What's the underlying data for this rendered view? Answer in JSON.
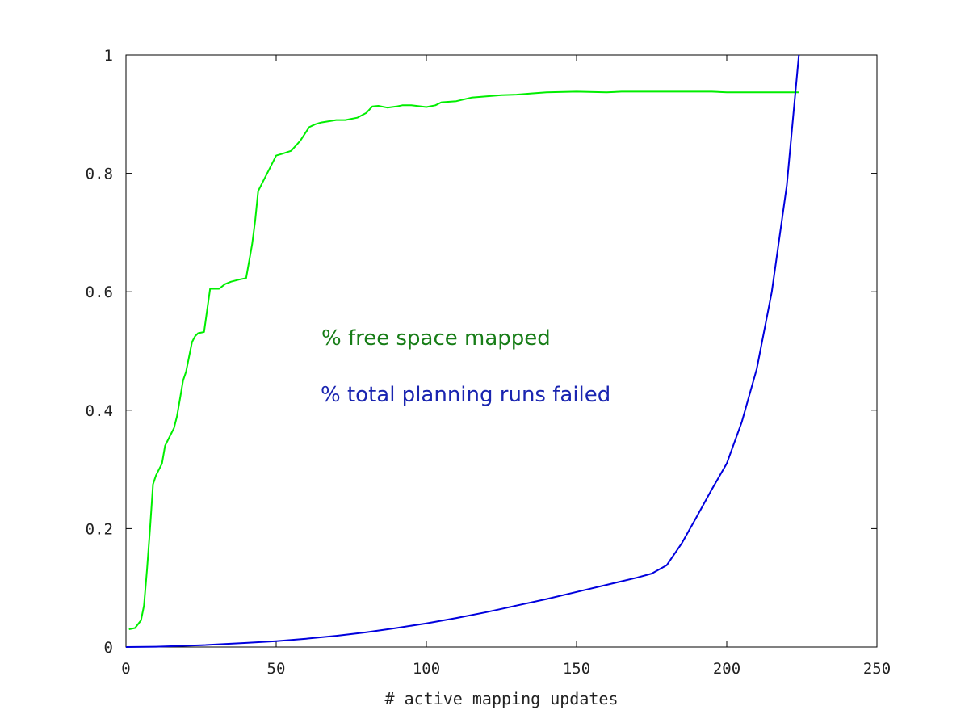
{
  "chart_data": {
    "type": "line",
    "title": "",
    "xlabel": "# active mapping updates",
    "ylabel": "",
    "xlim": [
      0,
      250
    ],
    "ylim": [
      0,
      1
    ],
    "grid": false,
    "xticks": [
      0,
      50,
      100,
      150,
      200,
      250
    ],
    "yticks": [
      0,
      0.2,
      0.4,
      0.6,
      0.8,
      1
    ],
    "xtick_labels": [
      "0",
      "50",
      "100",
      "150",
      "200",
      "250"
    ],
    "ytick_labels": [
      "0",
      "0.2",
      "0.4",
      "0.6",
      "0.8",
      "1"
    ],
    "series": [
      {
        "name": "% free space mapped",
        "color": "#00ee00",
        "label_color": "#177d17",
        "points": [
          [
            1,
            0.03
          ],
          [
            3,
            0.032
          ],
          [
            5,
            0.045
          ],
          [
            6,
            0.07
          ],
          [
            7,
            0.13
          ],
          [
            8,
            0.2
          ],
          [
            9,
            0.275
          ],
          [
            10,
            0.29
          ],
          [
            12,
            0.31
          ],
          [
            13,
            0.34
          ],
          [
            14,
            0.35
          ],
          [
            16,
            0.37
          ],
          [
            17,
            0.39
          ],
          [
            18,
            0.42
          ],
          [
            19,
            0.45
          ],
          [
            20,
            0.465
          ],
          [
            21,
            0.49
          ],
          [
            22,
            0.515
          ],
          [
            23,
            0.525
          ],
          [
            24,
            0.53
          ],
          [
            26,
            0.532
          ],
          [
            28,
            0.605
          ],
          [
            31,
            0.605
          ],
          [
            33,
            0.613
          ],
          [
            35,
            0.617
          ],
          [
            38,
            0.621
          ],
          [
            40,
            0.623
          ],
          [
            42,
            0.68
          ],
          [
            43,
            0.72
          ],
          [
            44,
            0.77
          ],
          [
            46,
            0.79
          ],
          [
            48,
            0.81
          ],
          [
            50,
            0.83
          ],
          [
            52,
            0.833
          ],
          [
            55,
            0.838
          ],
          [
            58,
            0.855
          ],
          [
            61,
            0.878
          ],
          [
            63,
            0.883
          ],
          [
            65,
            0.886
          ],
          [
            70,
            0.89
          ],
          [
            73,
            0.89
          ],
          [
            77,
            0.894
          ],
          [
            80,
            0.902
          ],
          [
            82,
            0.913
          ],
          [
            84,
            0.914
          ],
          [
            87,
            0.911
          ],
          [
            90,
            0.913
          ],
          [
            92,
            0.915
          ],
          [
            95,
            0.915
          ],
          [
            100,
            0.912
          ],
          [
            103,
            0.915
          ],
          [
            105,
            0.92
          ],
          [
            110,
            0.922
          ],
          [
            115,
            0.928
          ],
          [
            120,
            0.93
          ],
          [
            125,
            0.932
          ],
          [
            130,
            0.933
          ],
          [
            135,
            0.935
          ],
          [
            140,
            0.937
          ],
          [
            150,
            0.938
          ],
          [
            160,
            0.937
          ],
          [
            165,
            0.938
          ],
          [
            180,
            0.938
          ],
          [
            195,
            0.938
          ],
          [
            200,
            0.937
          ],
          [
            210,
            0.937
          ],
          [
            224,
            0.937
          ]
        ]
      },
      {
        "name": "% total planning runs failed",
        "color": "#0000dd",
        "label_color": "#1a25b0",
        "points": [
          [
            0,
            0
          ],
          [
            10,
            0.0005
          ],
          [
            25,
            0.003
          ],
          [
            40,
            0.007
          ],
          [
            50,
            0.01
          ],
          [
            60,
            0.014
          ],
          [
            70,
            0.019
          ],
          [
            80,
            0.025
          ],
          [
            90,
            0.032
          ],
          [
            100,
            0.04
          ],
          [
            110,
            0.049
          ],
          [
            120,
            0.059
          ],
          [
            130,
            0.07
          ],
          [
            140,
            0.081
          ],
          [
            150,
            0.093
          ],
          [
            160,
            0.105
          ],
          [
            170,
            0.117
          ],
          [
            175,
            0.124
          ],
          [
            180,
            0.138
          ],
          [
            185,
            0.175
          ],
          [
            190,
            0.22
          ],
          [
            195,
            0.266
          ],
          [
            200,
            0.31
          ],
          [
            205,
            0.38
          ],
          [
            210,
            0.47
          ],
          [
            215,
            0.6
          ],
          [
            220,
            0.78
          ],
          [
            224,
            1.0
          ]
        ]
      }
    ]
  }
}
